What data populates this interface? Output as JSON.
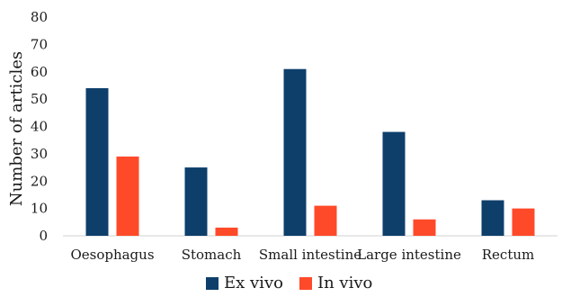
{
  "chart_data": {
    "type": "bar",
    "title": "",
    "xlabel": "",
    "ylabel": "Number of articles",
    "ylim": [
      0,
      80
    ],
    "yticks": [
      0,
      10,
      20,
      30,
      40,
      50,
      60,
      70,
      80
    ],
    "grid": false,
    "legend_position": "bottom",
    "categories": [
      "Oesophagus",
      "Stomach",
      "Small intestine",
      "Large intestine",
      "Rectum"
    ],
    "series": [
      {
        "name": "Ex vivo",
        "color": "#0e3f6b",
        "values": [
          54,
          25,
          61,
          38,
          13
        ]
      },
      {
        "name": "In vivo",
        "color": "#ff4a2a",
        "values": [
          29,
          3,
          11,
          6,
          10
        ]
      }
    ]
  }
}
